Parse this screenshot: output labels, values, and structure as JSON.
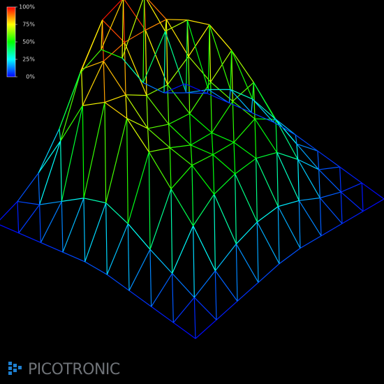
{
  "chart_data": {
    "type": "surface",
    "colorbar_ticks": [
      {
        "value": 100,
        "label": "100%"
      },
      {
        "value": 75,
        "label": "75%"
      },
      {
        "value": 50,
        "label": "50%"
      },
      {
        "value": 25,
        "label": "25%"
      },
      {
        "value": 0,
        "label": "0%"
      }
    ],
    "zlim": [
      0,
      100
    ],
    "z": [
      [
        0,
        2,
        4,
        6,
        8,
        8,
        6,
        4,
        2,
        0
      ],
      [
        2,
        8,
        15,
        22,
        26,
        26,
        20,
        12,
        6,
        2
      ],
      [
        4,
        15,
        35,
        45,
        48,
        48,
        42,
        28,
        12,
        4
      ],
      [
        6,
        22,
        50,
        55,
        52,
        50,
        55,
        45,
        20,
        6
      ],
      [
        8,
        30,
        65,
        58,
        50,
        48,
        58,
        60,
        28,
        8
      ],
      [
        8,
        35,
        78,
        62,
        55,
        52,
        62,
        72,
        32,
        8
      ],
      [
        6,
        30,
        80,
        75,
        65,
        62,
        70,
        80,
        30,
        6
      ],
      [
        4,
        20,
        70,
        88,
        90,
        88,
        85,
        75,
        22,
        4
      ],
      [
        2,
        10,
        40,
        75,
        96,
        100,
        92,
        60,
        12,
        2
      ],
      [
        0,
        4,
        12,
        30,
        55,
        60,
        45,
        20,
        4,
        0
      ]
    ]
  },
  "logo": {
    "text": "PICOTRONIC"
  }
}
